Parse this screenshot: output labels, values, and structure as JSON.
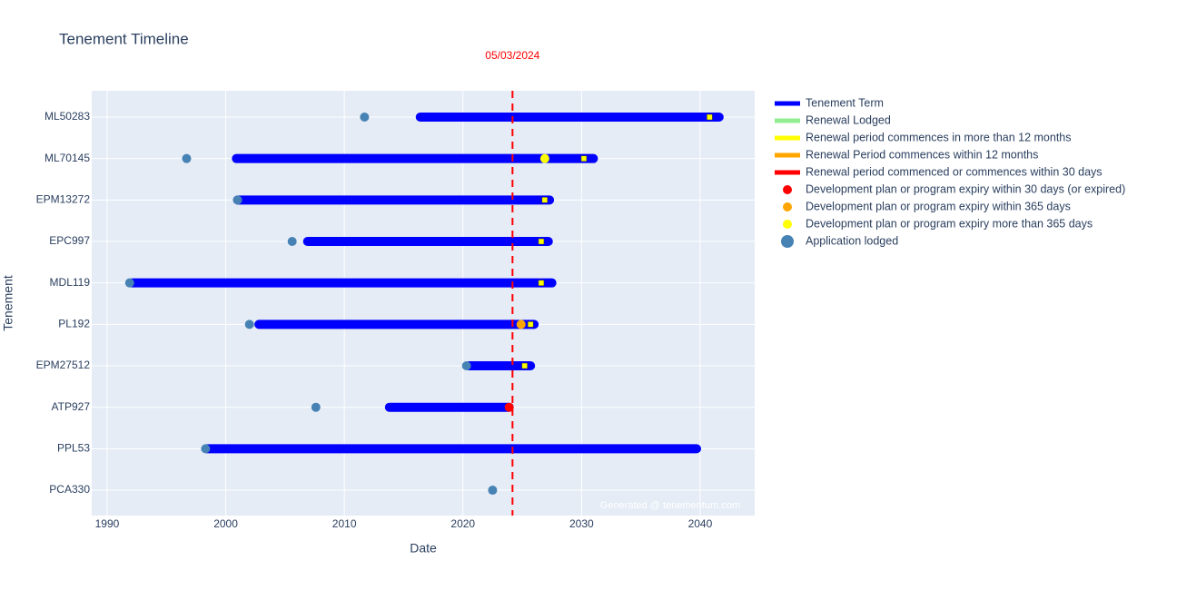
{
  "chart_data": {
    "type": "timeline",
    "title": "Tenement Timeline",
    "x_label": "Date",
    "y_label": "Tenement",
    "categories": [
      "ML50283",
      "ML70145",
      "EPM13272",
      "EPC997",
      "MDL119",
      "PL192",
      "EPM27512",
      "ATP927",
      "PPL53",
      "PCA330"
    ],
    "xlim": [
      1988.7,
      2044.6
    ],
    "xticks": [
      1990,
      2000,
      2010,
      2020,
      2030,
      2040
    ],
    "grid": true,
    "series": [
      {
        "name": "Tenement Term",
        "color": "#0000ff",
        "mode": "line",
        "start": [
          2016.4,
          2000.9,
          2001.0,
          2006.9,
          1992.1,
          2002.8,
          2020.5,
          2013.8,
          1998.4,
          null
        ],
        "end": [
          2041.6,
          2031.0,
          2027.3,
          2027.2,
          2027.5,
          2026.0,
          2025.7,
          2023.9,
          2039.7,
          null
        ]
      },
      {
        "name": "Renewal Lodged",
        "color": "#90ee90",
        "mode": "line",
        "x": [
          null,
          null,
          null,
          null,
          null,
          null,
          null,
          null,
          null,
          null
        ]
      },
      {
        "name": "Renewal period commences in more than 12 months",
        "color": "#ffff00",
        "mode": "line",
        "x": [
          2040.8,
          2030.2,
          2026.9,
          2026.6,
          2026.6,
          2025.7,
          2025.2,
          null,
          null,
          null
        ]
      },
      {
        "name": "Renewal Period commences within 12 months",
        "color": "#ffa500",
        "mode": "line",
        "x": [
          null,
          null,
          null,
          null,
          null,
          null,
          null,
          null,
          null,
          null
        ]
      },
      {
        "name": "Renewal period commenced or commences within 30 days",
        "color": "#ff0000",
        "mode": "line",
        "x": [
          null,
          null,
          null,
          null,
          null,
          null,
          null,
          null,
          null,
          null
        ]
      },
      {
        "name": "Development plan or program expiry within 30 days (or expired)",
        "color": "#ff0000",
        "mode": "marker",
        "x": [
          null,
          null,
          null,
          null,
          null,
          null,
          null,
          2023.9,
          null,
          null
        ]
      },
      {
        "name": "Development plan or program expiry within 365 days",
        "color": "#ffa500",
        "mode": "marker",
        "x": [
          null,
          null,
          null,
          null,
          null,
          2024.9,
          null,
          null,
          null,
          null
        ]
      },
      {
        "name": "Development plan or program expiry more than 365 days",
        "color": "#ffff00",
        "mode": "marker",
        "x": [
          null,
          2026.9,
          null,
          null,
          null,
          null,
          null,
          null,
          null,
          null
        ]
      },
      {
        "name": "Application lodged",
        "color": "#4682b4",
        "mode": "big-marker",
        "x": [
          2011.7,
          1996.7,
          2001.0,
          2005.6,
          1991.9,
          2002.0,
          2020.3,
          2007.6,
          1998.3,
          2022.5
        ]
      }
    ],
    "vline": {
      "x": 2024.18,
      "label": "05/03/2024",
      "color": "#ff0000"
    },
    "watermark": "Generated @ tenementum.com"
  }
}
